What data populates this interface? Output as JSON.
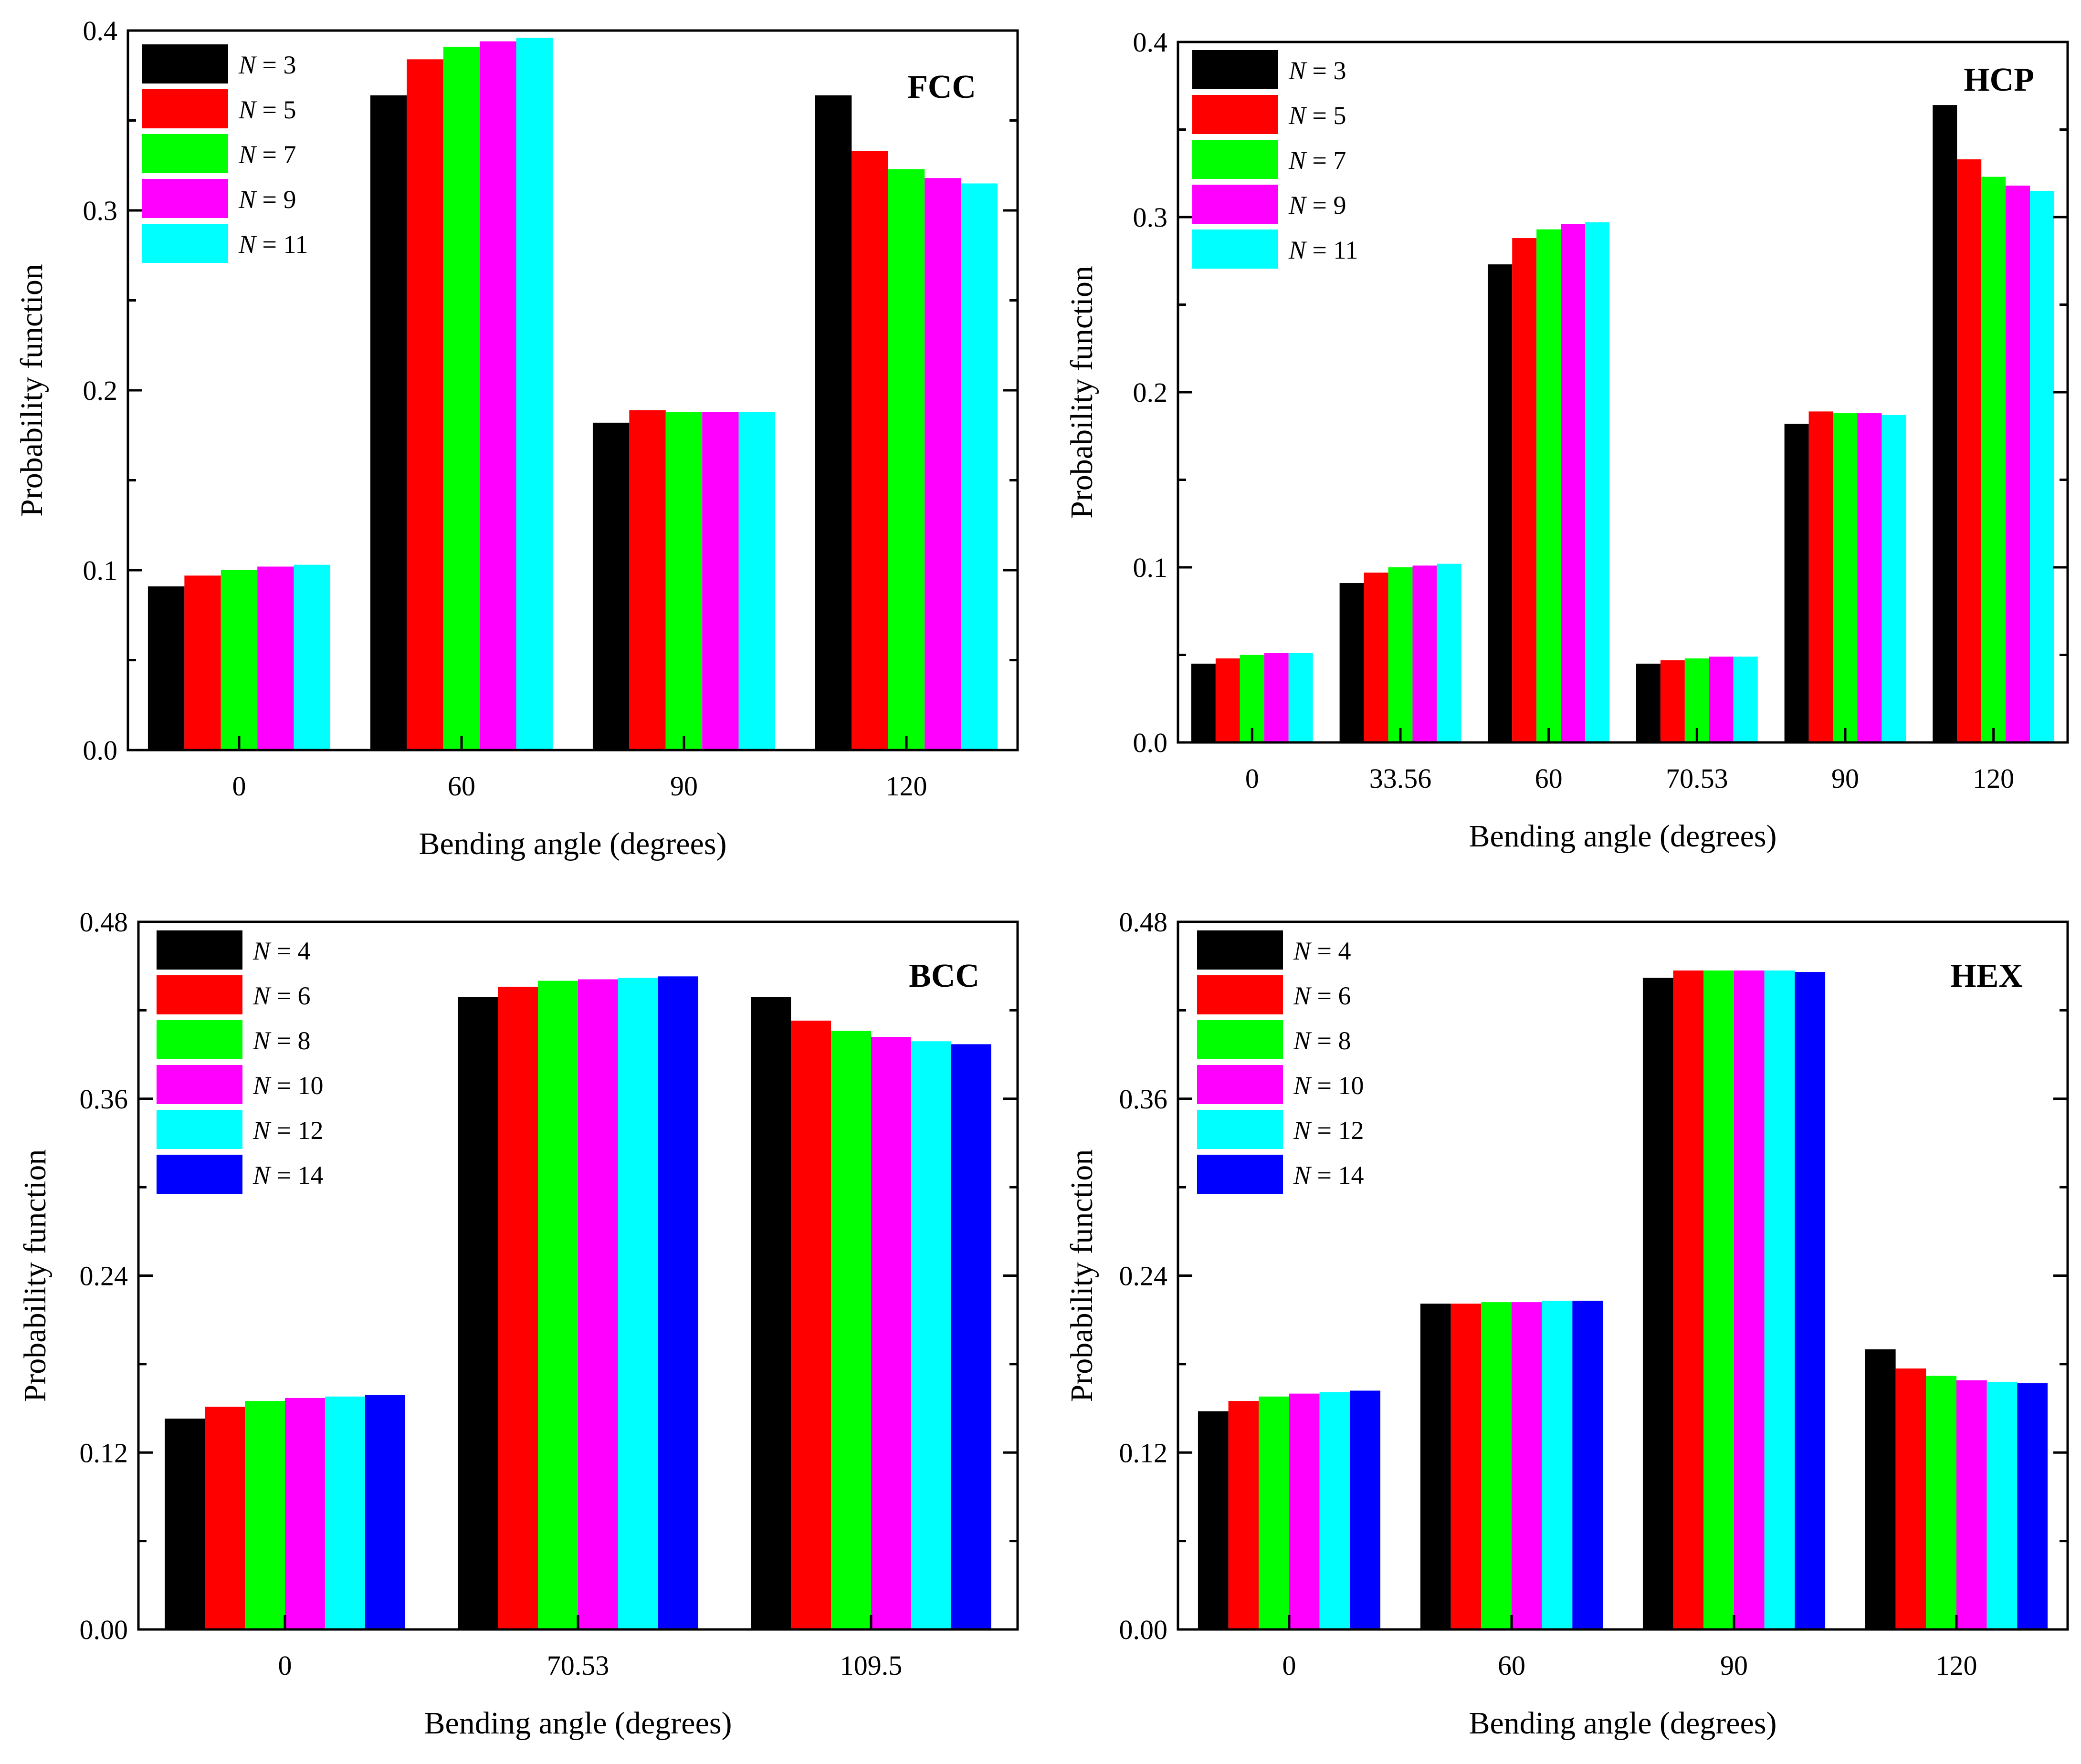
{
  "chart_data": [
    {
      "type": "bar",
      "panel": "FCC",
      "title": "FCC",
      "xlabel": "Bending angle (degrees)",
      "ylabel": "Probability function",
      "ylim": [
        0,
        0.4
      ],
      "yticks": [
        "0.0",
        "0.1",
        "0.2",
        "0.3",
        "0.4"
      ],
      "categories": [
        "0",
        "60",
        "90",
        "120"
      ],
      "legend_position": "top-left",
      "series": [
        {
          "name": "N = 3",
          "label_var": "N",
          "label_rest": " = 3",
          "color": "#000000",
          "values": [
            0.091,
            0.364,
            0.182,
            0.364
          ]
        },
        {
          "name": "N = 5",
          "label_var": "N",
          "label_rest": " = 5",
          "color": "#ff0000",
          "values": [
            0.097,
            0.384,
            0.189,
            0.333
          ]
        },
        {
          "name": "N = 7",
          "label_var": "N",
          "label_rest": " = 7",
          "color": "#00ff00",
          "values": [
            0.1,
            0.391,
            0.188,
            0.323
          ]
        },
        {
          "name": "N = 9",
          "label_var": "N",
          "label_rest": " = 9",
          "color": "#ff00ff",
          "values": [
            0.102,
            0.394,
            0.188,
            0.318
          ]
        },
        {
          "name": "N = 11",
          "label_var": "N",
          "label_rest": " = 11",
          "color": "#00ffff",
          "values": [
            0.103,
            0.396,
            0.188,
            0.315
          ]
        }
      ]
    },
    {
      "type": "bar",
      "panel": "HCP",
      "title": "HCP",
      "xlabel": "Bending angle (degrees)",
      "ylabel": "Probability function",
      "ylim": [
        0,
        0.4
      ],
      "yticks": [
        "0.0",
        "0.1",
        "0.2",
        "0.3",
        "0.4"
      ],
      "categories": [
        "0",
        "33.56",
        "60",
        "70.53",
        "90",
        "120"
      ],
      "legend_position": "top-left",
      "series": [
        {
          "name": "N = 3",
          "label_var": "N",
          "label_rest": " = 3",
          "color": "#000000",
          "values": [
            0.045,
            0.091,
            0.273,
            0.045,
            0.182,
            0.364
          ]
        },
        {
          "name": "N = 5",
          "label_var": "N",
          "label_rest": " = 5",
          "color": "#ff0000",
          "values": [
            0.048,
            0.097,
            0.288,
            0.047,
            0.189,
            0.333
          ]
        },
        {
          "name": "N = 7",
          "label_var": "N",
          "label_rest": " = 7",
          "color": "#00ff00",
          "values": [
            0.05,
            0.1,
            0.293,
            0.048,
            0.188,
            0.323
          ]
        },
        {
          "name": "N = 9",
          "label_var": "N",
          "label_rest": " = 9",
          "color": "#ff00ff",
          "values": [
            0.051,
            0.101,
            0.296,
            0.049,
            0.188,
            0.318
          ]
        },
        {
          "name": "N = 11",
          "label_var": "N",
          "label_rest": " = 11",
          "color": "#00ffff",
          "values": [
            0.051,
            0.102,
            0.297,
            0.049,
            0.187,
            0.315
          ]
        }
      ]
    },
    {
      "type": "bar",
      "panel": "BCC",
      "title": "BCC",
      "xlabel": "Bending angle (degrees)",
      "ylabel": "Probability function",
      "ylim": [
        0,
        0.48
      ],
      "yticks": [
        "0.00",
        "0.12",
        "0.24",
        "0.36",
        "0.48"
      ],
      "categories": [
        "0",
        "70.53",
        "109.5"
      ],
      "legend_position": "top-left",
      "series": [
        {
          "name": "N = 4",
          "label_var": "N",
          "label_rest": " = 4",
          "color": "#000000",
          "values": [
            0.143,
            0.429,
            0.429
          ]
        },
        {
          "name": "N = 6",
          "label_var": "N",
          "label_rest": " = 6",
          "color": "#ff0000",
          "values": [
            0.151,
            0.436,
            0.413
          ]
        },
        {
          "name": "N = 8",
          "label_var": "N",
          "label_rest": " = 8",
          "color": "#00ff00",
          "values": [
            0.155,
            0.44,
            0.406
          ]
        },
        {
          "name": "N = 10",
          "label_var": "N",
          "label_rest": " = 10",
          "color": "#ff00ff",
          "values": [
            0.157,
            0.441,
            0.402
          ]
        },
        {
          "name": "N = 12",
          "label_var": "N",
          "label_rest": " = 12",
          "color": "#00ffff",
          "values": [
            0.158,
            0.442,
            0.399
          ]
        },
        {
          "name": "N = 14",
          "label_var": "N",
          "label_rest": " = 14",
          "color": "#0000ff",
          "values": [
            0.159,
            0.443,
            0.397
          ]
        }
      ]
    },
    {
      "type": "bar",
      "panel": "HEX",
      "title": "HEX",
      "xlabel": "Bending angle (degrees)",
      "ylabel": "Probability function",
      "ylim": [
        0,
        0.48
      ],
      "yticks": [
        "0.00",
        "0.12",
        "0.24",
        "0.36",
        "0.48"
      ],
      "categories": [
        "0",
        "60",
        "90",
        "120"
      ],
      "legend_position": "top-left",
      "series": [
        {
          "name": "N = 4",
          "label_var": "N",
          "label_rest": " = 4",
          "color": "#000000",
          "values": [
            0.148,
            0.221,
            0.442,
            0.19
          ]
        },
        {
          "name": "N = 6",
          "label_var": "N",
          "label_rest": " = 6",
          "color": "#ff0000",
          "values": [
            0.155,
            0.221,
            0.447,
            0.177
          ]
        },
        {
          "name": "N = 8",
          "label_var": "N",
          "label_rest": " = 8",
          "color": "#00ff00",
          "values": [
            0.158,
            0.222,
            0.447,
            0.172
          ]
        },
        {
          "name": "N = 10",
          "label_var": "N",
          "label_rest": " = 10",
          "color": "#ff00ff",
          "values": [
            0.16,
            0.222,
            0.447,
            0.169
          ]
        },
        {
          "name": "N = 12",
          "label_var": "N",
          "label_rest": " = 12",
          "color": "#00ffff",
          "values": [
            0.161,
            0.223,
            0.447,
            0.168
          ]
        },
        {
          "name": "N = 14",
          "label_var": "N",
          "label_rest": " = 14",
          "color": "#0000ff",
          "values": [
            0.162,
            0.223,
            0.446,
            0.167
          ]
        }
      ]
    }
  ]
}
